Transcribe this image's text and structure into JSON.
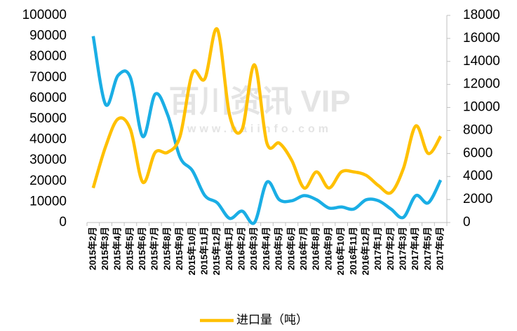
{
  "chart_data": {
    "type": "line",
    "watermark": "百川资讯 VIP",
    "watermark_url": "www.baiinfo.com",
    "categories": [
      "2015年2月",
      "2015年3月",
      "2015年4月",
      "2015年5月",
      "2015年6月",
      "2015年7月",
      "2015年8月",
      "2015年9月",
      "2015年10月",
      "2015年11月",
      "2015年12月",
      "2016年1月",
      "2016年2月",
      "2016年3月",
      "2016年4月",
      "2016年5月",
      "2016年6月",
      "2016年7月",
      "2016年8月",
      "2016年9月",
      "2016年10月",
      "2016年11月",
      "2016年12月",
      "2017年1月",
      "2017年2月",
      "2017年3月",
      "2017年4月",
      "2017年5月",
      "2017年6月"
    ],
    "series": [
      {
        "color": "#1aaee5",
        "axis": "y",
        "values": [
          90000,
          57000,
          71000,
          70000,
          41500,
          62000,
          52000,
          31500,
          25000,
          13000,
          9500,
          2000,
          5500,
          0,
          19500,
          11000,
          10500,
          13000,
          11000,
          7000,
          7500,
          6500,
          11000,
          10500,
          6500,
          2500,
          13000,
          9500,
          20500
        ]
      },
      {
        "name": "进口量（吨）",
        "color": "#ffc000",
        "axis": "y2",
        "values": [
          3000,
          6600,
          9000,
          8100,
          3500,
          6100,
          6100,
          7500,
          13000,
          12500,
          16800,
          9300,
          8100,
          13700,
          6900,
          6900,
          5400,
          3000,
          4400,
          3000,
          4400,
          4400,
          4100,
          3200,
          2600,
          4700,
          8400,
          6000,
          7500
        ]
      }
    ],
    "ylim": [
      0,
      100000
    ],
    "yticks": [
      0,
      10000,
      20000,
      30000,
      40000,
      50000,
      60000,
      70000,
      80000,
      90000,
      100000
    ],
    "y2lim": [
      0,
      18000
    ],
    "y2ticks": [
      0,
      2000,
      4000,
      6000,
      8000,
      10000,
      12000,
      14000,
      16000,
      18000
    ],
    "legend": "bottom"
  }
}
